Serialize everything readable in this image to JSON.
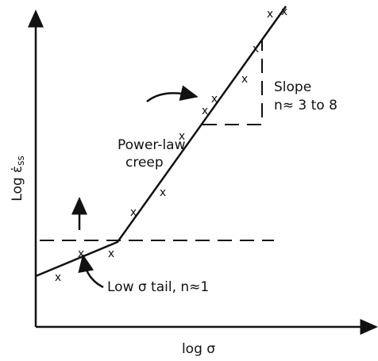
{
  "axes": {
    "y_label": {
      "text": "Log ε̇",
      "subscript": "ss"
    },
    "x_label": "log σ"
  },
  "annotations": {
    "power_law": [
      "Power-law",
      "creep"
    ],
    "slope": [
      "Slope",
      "n≈ 3 to 8"
    ],
    "low_tail": "Low σ tail, n≈1"
  },
  "points": {
    "marker": "x"
  }
}
